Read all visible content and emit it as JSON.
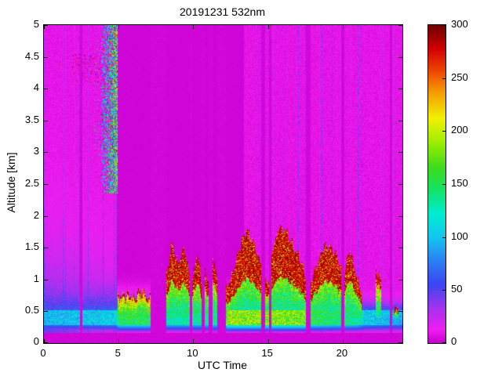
{
  "chart_data": {
    "type": "heatmap",
    "title": "20191231 532nm",
    "xlabel": "UTC Time",
    "ylabel": "Altitude [km]",
    "xlim": [
      0,
      24
    ],
    "ylim": [
      0,
      5
    ],
    "clim": [
      0,
      300
    ],
    "xticks": [
      0,
      5,
      10,
      15,
      20
    ],
    "yticks": [
      0,
      0.5,
      1,
      1.5,
      2,
      2.5,
      3,
      3.5,
      4,
      4.5,
      5
    ],
    "colorbar_ticks": [
      0,
      50,
      100,
      150,
      200,
      250,
      300
    ],
    "legend_position": "right-colorbar",
    "grid": false,
    "colormap": [
      {
        "v": 0,
        "c": "#C800D2"
      },
      {
        "v": 12,
        "c": "#F01EF0"
      },
      {
        "v": 32,
        "c": "#A832F0"
      },
      {
        "v": 55,
        "c": "#3C46F2"
      },
      {
        "v": 80,
        "c": "#2888F5"
      },
      {
        "v": 100,
        "c": "#14C8F0"
      },
      {
        "v": 122,
        "c": "#00EED2"
      },
      {
        "v": 145,
        "c": "#14E364"
      },
      {
        "v": 165,
        "c": "#3CDC1E"
      },
      {
        "v": 190,
        "c": "#A0EE00"
      },
      {
        "v": 212,
        "c": "#F2F200"
      },
      {
        "v": 238,
        "c": "#F59800"
      },
      {
        "v": 257,
        "c": "#EE4600"
      },
      {
        "v": 278,
        "c": "#D20000"
      },
      {
        "v": 300,
        "c": "#6E0000"
      }
    ],
    "uniform_region": {
      "t0": 4.88,
      "t1": 13.4
    },
    "streaks": {
      "probability": 0.11,
      "max_boost": 2.6
    },
    "boundary_layer": {
      "surface_dark_km": 0.16,
      "band_bottom_km": 0.28,
      "band_top_km": 0.52,
      "haze_scale_left_km": 0.45,
      "haze_scale_km": 0.16,
      "intensity_points": [
        [
          0,
          95
        ],
        [
          4.8,
          105
        ],
        [
          5.0,
          150
        ],
        [
          7.1,
          150
        ],
        [
          8.2,
          125
        ],
        [
          12.1,
          135
        ],
        [
          12.3,
          185
        ],
        [
          17.5,
          180
        ],
        [
          18,
          150
        ],
        [
          21,
          135
        ],
        [
          21.5,
          105
        ],
        [
          24,
          95
        ]
      ]
    },
    "cloud_segments": [
      {
        "t0": 4.92,
        "t1": 7.15,
        "top_km": [
          0.72,
          0.78,
          0.74,
          0.8,
          0.72
        ],
        "red_frac": 0.84
      },
      {
        "t0": 8.2,
        "t1": 9.75,
        "top_km": [
          1.05,
          1.55,
          1.25,
          1.5,
          1.1
        ],
        "red_frac": 0.5
      },
      {
        "t0": 9.95,
        "t1": 10.55,
        "top_km": [
          0.95,
          1.4,
          1.0
        ],
        "red_frac": 0.55
      },
      {
        "t0": 10.75,
        "t1": 11.05,
        "top_km": [
          1.15,
          0.95
        ],
        "red_frac": 0.6
      },
      {
        "t0": 11.3,
        "t1": 11.6,
        "top_km": [
          1.35,
          1.05
        ],
        "red_frac": 0.6
      },
      {
        "t0": 12.2,
        "t1": 14.55,
        "top_km": [
          0.85,
          1.1,
          1.55,
          1.78,
          1.55,
          1.25
        ],
        "red_frac": 0.45
      },
      {
        "t0": 14.8,
        "t1": 15.05,
        "top_km": [
          1.05,
          0.95
        ],
        "red_frac": 0.6
      },
      {
        "t0": 15.25,
        "t1": 17.55,
        "top_km": [
          1.45,
          1.78,
          1.8,
          1.55,
          1.35,
          1.05
        ],
        "red_frac": 0.45
      },
      {
        "t0": 17.85,
        "t1": 19.9,
        "top_km": [
          0.95,
          1.3,
          1.55,
          1.45,
          1.15
        ],
        "red_frac": 0.5
      },
      {
        "t0": 20.1,
        "t1": 21.25,
        "top_km": [
          1.05,
          1.45,
          1.1,
          0.8
        ],
        "red_frac": 0.55
      },
      {
        "t0": 22.2,
        "t1": 22.6,
        "top_km": [
          1.15,
          1.0
        ],
        "red_frac": 0.7
      },
      {
        "t0": 23.35,
        "t1": 23.75,
        "top_km": [
          0.55,
          0.5
        ],
        "red_frac": 0.5
      }
    ],
    "gaps": [
      [
        2.42,
        2.56
      ],
      [
        7.15,
        8.2
      ],
      [
        9.75,
        9.95
      ],
      [
        10.55,
        10.75
      ],
      [
        11.05,
        11.3
      ],
      [
        11.6,
        12.2
      ],
      [
        14.55,
        14.8
      ],
      [
        15.05,
        15.25
      ],
      [
        17.55,
        17.85
      ],
      [
        19.9,
        20.1
      ],
      [
        23.15,
        23.3
      ]
    ],
    "high_cloud": {
      "t0": 3.85,
      "t1": 4.95,
      "base_km": 2.35,
      "top_km": 5.0
    },
    "speck_boxes": [
      {
        "t0": 1.9,
        "t1": 3.8,
        "z0": 4.1,
        "z1": 4.55,
        "p": 0.07,
        "vmin": 265,
        "vmax": 300
      },
      {
        "t0": 3.3,
        "t1": 3.9,
        "z0": 2.9,
        "z1": 4.8,
        "p": 0.04,
        "vmin": 70,
        "vmax": 170
      },
      {
        "t0": 0.85,
        "t1": 1.25,
        "z0": 4.25,
        "z1": 4.5,
        "p": 0.05,
        "vmin": 240,
        "vmax": 290
      }
    ]
  }
}
